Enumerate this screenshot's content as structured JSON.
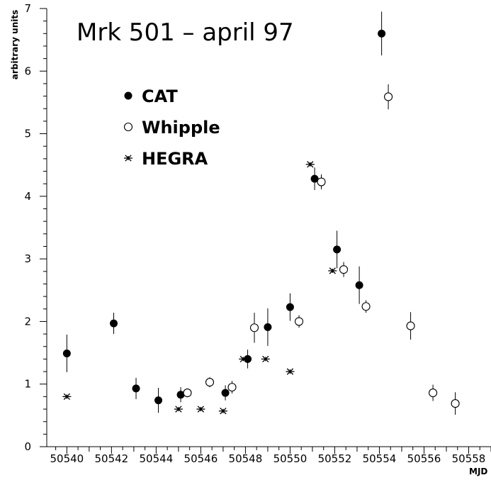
{
  "chart_data": {
    "type": "scatter",
    "title": "Mrk 501  –  april 97",
    "xlabel": "MJD",
    "ylabel": "arbitrary units",
    "xlim": [
      50539.1,
      50559.0
    ],
    "ylim": [
      0,
      7
    ],
    "x_ticks": [
      50540,
      50542,
      50544,
      50546,
      50548,
      50550,
      50552,
      50554,
      50556,
      50558
    ],
    "y_ticks": [
      0,
      1,
      2,
      3,
      4,
      5,
      6,
      7
    ],
    "legend_position": "upper-left",
    "series": [
      {
        "name": "CAT",
        "marker": "filled-circle",
        "points": [
          {
            "x": 50540.0,
            "y": 1.49,
            "err": 0.3
          },
          {
            "x": 50542.1,
            "y": 1.97,
            "err": 0.17
          },
          {
            "x": 50543.1,
            "y": 0.93,
            "err": 0.17
          },
          {
            "x": 50544.1,
            "y": 0.74,
            "err": 0.2
          },
          {
            "x": 50545.1,
            "y": 0.83,
            "err": 0.12
          },
          {
            "x": 50547.1,
            "y": 0.86,
            "err": 0.12
          },
          {
            "x": 50548.1,
            "y": 1.4,
            "err": 0.15
          },
          {
            "x": 50549.0,
            "y": 1.91,
            "err": 0.3
          },
          {
            "x": 50550.0,
            "y": 2.23,
            "err": 0.22
          },
          {
            "x": 50551.1,
            "y": 4.28,
            "err": 0.18
          },
          {
            "x": 50552.1,
            "y": 3.15,
            "err": 0.3
          },
          {
            "x": 50553.1,
            "y": 2.58,
            "err": 0.3
          },
          {
            "x": 50554.1,
            "y": 6.6,
            "err": 0.35
          }
        ]
      },
      {
        "name": "Whipple",
        "marker": "open-circle",
        "points": [
          {
            "x": 50545.4,
            "y": 0.86,
            "err": 0.07
          },
          {
            "x": 50546.4,
            "y": 1.03,
            "err": 0.08
          },
          {
            "x": 50547.4,
            "y": 0.95,
            "err": 0.1
          },
          {
            "x": 50548.4,
            "y": 1.9,
            "err": 0.24
          },
          {
            "x": 50550.4,
            "y": 2.0,
            "err": 0.1
          },
          {
            "x": 50551.4,
            "y": 4.23,
            "err": 0.12
          },
          {
            "x": 50552.4,
            "y": 2.83,
            "err": 0.12
          },
          {
            "x": 50553.4,
            "y": 2.24,
            "err": 0.1
          },
          {
            "x": 50554.4,
            "y": 5.59,
            "err": 0.2
          },
          {
            "x": 50555.4,
            "y": 1.93,
            "err": 0.22
          },
          {
            "x": 50556.4,
            "y": 0.86,
            "err": 0.13
          },
          {
            "x": 50557.4,
            "y": 0.69,
            "err": 0.18
          }
        ]
      },
      {
        "name": "HEGRA",
        "marker": "asterisk",
        "points": [
          {
            "x": 50540.0,
            "y": 0.8
          },
          {
            "x": 50545.0,
            "y": 0.6
          },
          {
            "x": 50546.0,
            "y": 0.6
          },
          {
            "x": 50547.0,
            "y": 0.57
          },
          {
            "x": 50547.9,
            "y": 1.4
          },
          {
            "x": 50548.9,
            "y": 1.4
          },
          {
            "x": 50550.0,
            "y": 1.2
          },
          {
            "x": 50550.9,
            "y": 4.51
          },
          {
            "x": 50551.9,
            "y": 2.81
          }
        ]
      }
    ]
  }
}
